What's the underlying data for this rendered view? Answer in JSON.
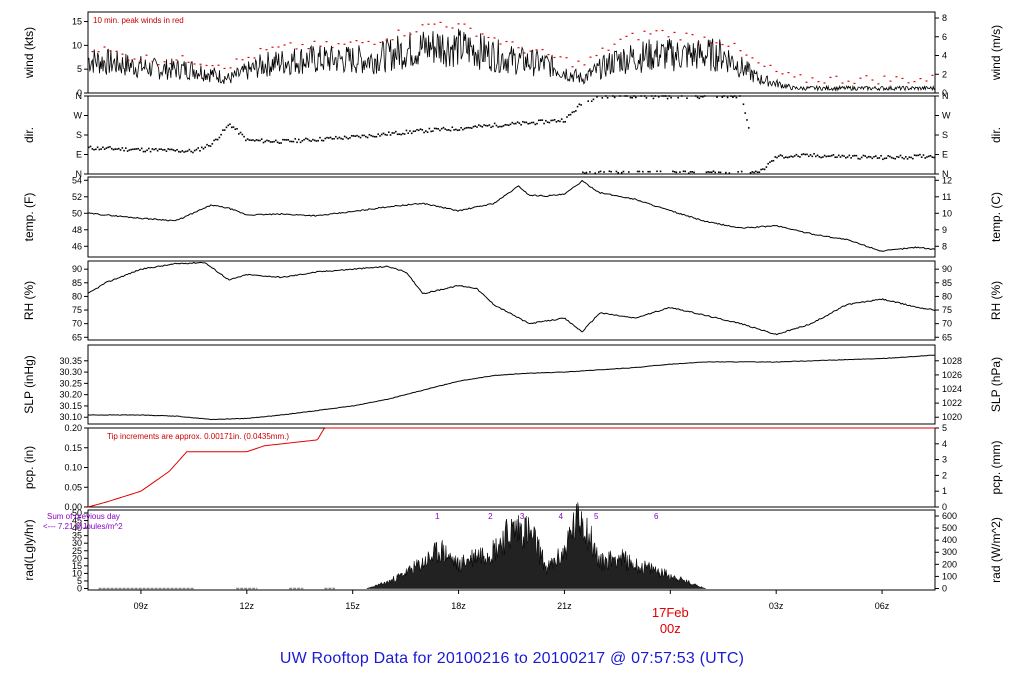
{
  "title": "UW Rooftop Data for 20100216  to  20100217 @ 07:57:53  (UTC)",
  "colors": {
    "trace": "#000000",
    "peak": "#e00000",
    "note": "#cc0000",
    "solar": "#8a00c8",
    "title": "#1a1ad6",
    "date": "#e00000"
  },
  "x_axis": {
    "ticks": [
      "09z",
      "12z",
      "15z",
      "18z",
      "21z",
      "00z",
      "03z",
      "06z"
    ],
    "date_label": "17Feb",
    "date_hour": "00z"
  },
  "chart_data": [
    {
      "type": "line",
      "key": "wind",
      "left_label": "wind (kts)",
      "right_label": "wind (m/s)",
      "ylim": [
        0,
        17
      ],
      "left_ticks": [
        "0",
        "5",
        "10",
        "15"
      ],
      "right_ticks": [
        "0",
        "2",
        "4",
        "6",
        "8"
      ],
      "note": "10 min. peak winds in red",
      "series": [
        {
          "name": "wind speed",
          "x": [
            7.5,
            8.5,
            9.5,
            10.5,
            11.5,
            12.5,
            13.5,
            14.5,
            15.5,
            16.5,
            17.5,
            18.5,
            19.5,
            20.5,
            21.5,
            22.5,
            23.5,
            24.5,
            25.5,
            26.5,
            27.5,
            28.5,
            29.5,
            30.5,
            31.5
          ],
          "values": [
            7,
            6,
            5,
            5,
            3,
            6,
            7,
            7,
            7,
            9,
            10,
            9,
            7,
            6,
            3,
            7,
            8,
            8,
            8,
            3,
            1,
            1,
            1,
            1,
            1
          ]
        },
        {
          "name": "10 min peak",
          "x": [
            7.5,
            8.5,
            9.5,
            10.5,
            11.5,
            12.5,
            13.5,
            14.5,
            15.5,
            16.5,
            17.5,
            18.5,
            19.5,
            20.5,
            21.5,
            22.5,
            23.5,
            24.5,
            25.5,
            26.5,
            27.5,
            28.5,
            29.5,
            30.5,
            31.5
          ],
          "values": [
            10,
            8,
            7,
            7,
            6,
            9,
            10,
            10,
            11,
            13,
            15,
            13,
            10,
            8,
            6,
            11,
            13,
            12,
            11,
            6,
            3,
            3,
            3,
            3,
            3
          ]
        }
      ]
    },
    {
      "type": "scatter",
      "key": "dir",
      "left_label": "dir.",
      "right_label": "dir.",
      "ylim": [
        0,
        360
      ],
      "left_ticks": [
        "N",
        "E",
        "S",
        "W",
        "N"
      ],
      "right_ticks": [
        "N",
        "E",
        "S",
        "W",
        "N"
      ],
      "series": [
        {
          "name": "direction",
          "x": [
            7.5,
            9,
            10.5,
            11,
            11.5,
            12,
            13,
            14,
            15,
            16,
            17,
            18,
            19,
            20,
            21,
            21.5,
            22,
            23,
            24,
            25,
            26,
            26.5,
            27,
            28,
            29,
            30,
            31,
            31.5
          ],
          "values": [
            120,
            112,
            105,
            140,
            230,
            155,
            150,
            160,
            170,
            185,
            200,
            210,
            225,
            235,
            250,
            330,
            355,
            360,
            355,
            355,
            352,
            5,
            80,
            85,
            80,
            75,
            80,
            85
          ]
        }
      ]
    },
    {
      "type": "line",
      "key": "temp",
      "left_label": "temp. (F)",
      "right_label": "temp. (C)",
      "ylim": [
        44.7,
        54.4
      ],
      "left_ticks": [
        "46",
        "48",
        "50",
        "52",
        "54"
      ],
      "right_ticks": [
        "8",
        "9",
        "10",
        "11",
        "12"
      ],
      "series": [
        {
          "name": "temperature",
          "x": [
            7.5,
            8,
            9,
            10,
            11,
            11.5,
            12,
            13,
            14,
            15,
            16,
            17,
            18,
            19,
            19.7,
            20,
            20.5,
            21,
            21.5,
            22,
            23,
            24,
            25,
            26,
            27,
            28,
            29,
            30,
            31,
            31.5
          ],
          "values": [
            50,
            49.8,
            49.4,
            49.1,
            51,
            50.6,
            49.8,
            49.9,
            49.7,
            50.2,
            50.8,
            51.2,
            50.3,
            51.2,
            53.3,
            52.2,
            52.1,
            52.3,
            53.9,
            52.5,
            51.7,
            50.3,
            49,
            48.2,
            48.5,
            47.5,
            46.8,
            45.4,
            45.9,
            45.6
          ]
        }
      ]
    },
    {
      "type": "line",
      "key": "rh",
      "left_label": "RH (%)",
      "right_label": "RH (%)",
      "ylim": [
        64,
        93
      ],
      "left_ticks": [
        "65",
        "70",
        "75",
        "80",
        "85",
        "90"
      ],
      "right_ticks": [
        "65",
        "70",
        "75",
        "80",
        "85",
        "90"
      ],
      "series": [
        {
          "name": "relative humidity",
          "x": [
            7.5,
            8,
            9,
            10,
            10.8,
            11.5,
            12,
            13,
            14,
            15,
            16,
            16.5,
            17,
            18,
            18.5,
            19,
            20,
            21,
            21.5,
            22,
            23,
            24,
            25,
            26,
            27,
            28,
            29,
            30,
            31,
            31.5
          ],
          "values": [
            81,
            85,
            90,
            92,
            92.5,
            86,
            88,
            87,
            89,
            90,
            91,
            89,
            81,
            84,
            83,
            77,
            70,
            72,
            67,
            74,
            72,
            76,
            73,
            70,
            66,
            70,
            77,
            79,
            76,
            75
          ]
        }
      ]
    },
    {
      "type": "line",
      "key": "slp",
      "left_label": "SLP (inHg)",
      "right_label": "SLP (hPa)",
      "ylim": [
        30.07,
        30.42
      ],
      "left_ticks": [
        "30.10",
        "30.15",
        "30.20",
        "30.25",
        "30.30",
        "30.35"
      ],
      "right_ticks": [
        "1020",
        "1022",
        "1024",
        "1026",
        "1028"
      ],
      "series": [
        {
          "name": "sea level pressure",
          "x": [
            7.5,
            9,
            10,
            11,
            12,
            13,
            14,
            15,
            16,
            17,
            18,
            19,
            20,
            21,
            22,
            23,
            24,
            25,
            26,
            27,
            28,
            29,
            30,
            31,
            31.5
          ],
          "values": [
            30.11,
            30.11,
            30.105,
            30.09,
            30.095,
            30.11,
            30.13,
            30.15,
            30.18,
            30.22,
            30.26,
            30.285,
            30.295,
            30.3,
            30.31,
            30.32,
            30.335,
            30.345,
            30.345,
            30.345,
            30.35,
            30.355,
            30.36,
            30.37,
            30.375
          ]
        }
      ]
    },
    {
      "type": "line",
      "key": "pcp",
      "left_label": "pcp. (in)",
      "right_label": "pcp. (mm)",
      "ylim": [
        0,
        0.2
      ],
      "left_ticks": [
        "0.00",
        "0.05",
        "0.10",
        "0.15",
        "0.20"
      ],
      "right_ticks": [
        "0",
        "1",
        "2",
        "3",
        "4",
        "5"
      ],
      "note": "Tip increments are approx. 0.00171in. (0.0435mm.)",
      "series": [
        {
          "name": "precipitation",
          "x": [
            7.5,
            8,
            9,
            9.8,
            10.3,
            11,
            12,
            12.5,
            13,
            14,
            14.2,
            15,
            18,
            24,
            31.5
          ],
          "values": [
            0,
            0.012,
            0.04,
            0.09,
            0.14,
            0.14,
            0.14,
            0.155,
            0.16,
            0.17,
            0.2,
            0.2,
            0.2,
            0.2,
            0.2
          ]
        }
      ]
    },
    {
      "type": "area",
      "key": "rad",
      "left_label": "rad(Lgly/hr)",
      "right_label": "rad (W/m^2)",
      "ylim": [
        -1,
        52
      ],
      "left_ticks": [
        "0",
        "5",
        "10",
        "15",
        "20",
        "25",
        "30",
        "35",
        "40",
        "45",
        "50"
      ],
      "right_ticks": [
        "0",
        "100",
        "200",
        "300",
        "400",
        "500",
        "600"
      ],
      "legend_line1": "Sum of previous day",
      "legend_line2": "<--- 7.21 MJoules/m^2",
      "markers": [
        "1",
        "2",
        "3",
        "4",
        "5",
        "6"
      ],
      "marker_x": [
        17.4,
        18.9,
        19.8,
        20.9,
        21.9,
        23.6
      ],
      "series": [
        {
          "name": "solar radiation",
          "x": [
            15.4,
            16,
            16.5,
            17,
            17.5,
            18,
            18.5,
            19,
            19.3,
            19.6,
            19.9,
            20.2,
            20.5,
            21,
            21.2,
            21.5,
            22,
            22.5,
            23,
            23.5,
            24,
            24.5,
            25
          ],
          "values": [
            0,
            5,
            12,
            20,
            30,
            18,
            26,
            30,
            40,
            46,
            46,
            35,
            15,
            28,
            45,
            56,
            20,
            25,
            18,
            15,
            10,
            5,
            0
          ]
        }
      ]
    }
  ]
}
